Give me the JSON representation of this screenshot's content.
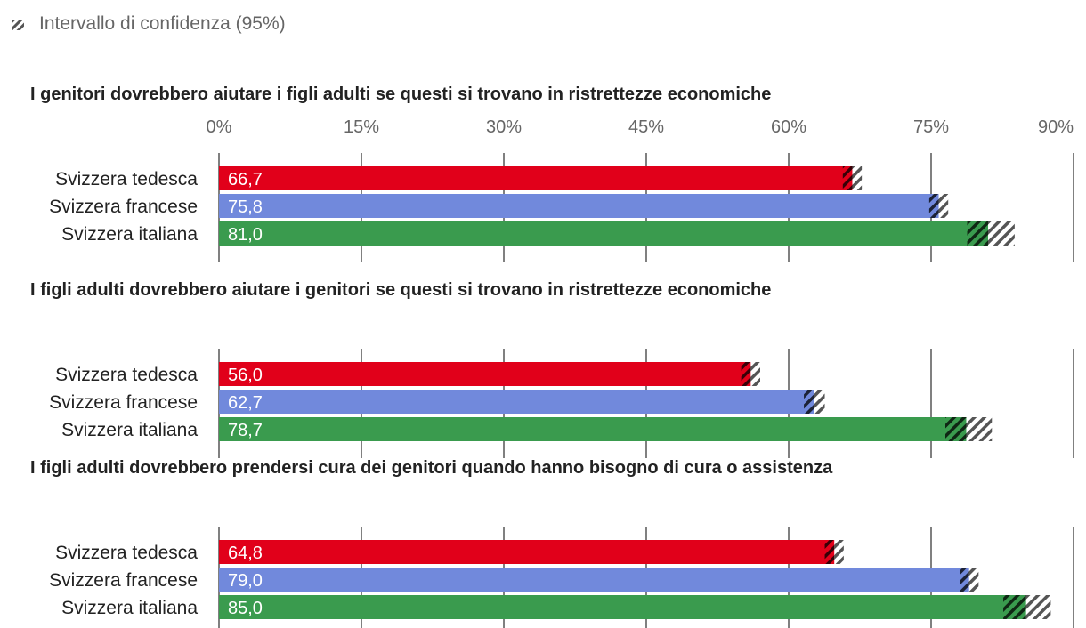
{
  "legend": {
    "ci_label": "Intervallo di confidenza (95%)",
    "icon": "hatch-icon"
  },
  "chart_data": {
    "type": "bar",
    "orientation": "horizontal",
    "x_ticks": [
      "0%",
      "15%",
      "30%",
      "45%",
      "60%",
      "75%",
      "90%"
    ],
    "xlim": [
      0,
      90
    ],
    "grid": true,
    "colors": {
      "Svizzera tedesca": "#e1001a",
      "Svizzera francese": "#7189dc",
      "Svizzera italiana": "#3a9b4e"
    },
    "panels": [
      {
        "title": "I genitori dovrebbero aiutare i figli adulti se questi si trovano in ristrettezze economiche",
        "categories": [
          "Svizzera tedesca",
          "Svizzera francese",
          "Svizzera italiana"
        ],
        "values": [
          66.7,
          75.8,
          81.0
        ],
        "value_labels": [
          "66,7",
          "75,8",
          "81,0"
        ],
        "ci_low": [
          65.7,
          74.8,
          78.8
        ],
        "ci_high": [
          67.7,
          76.8,
          83.8
        ]
      },
      {
        "title": "I figli adulti dovrebbero aiutare i genitori se questi si trovano in ristrettezze economiche",
        "categories": [
          "Svizzera tedesca",
          "Svizzera francese",
          "Svizzera italiana"
        ],
        "values": [
          56.0,
          62.7,
          78.7
        ],
        "value_labels": [
          "56,0",
          "62,7",
          "78,7"
        ],
        "ci_low": [
          55.0,
          61.6,
          76.5
        ],
        "ci_high": [
          57.0,
          63.8,
          81.4
        ]
      },
      {
        "title": "I figli adulti dovrebbero prendersi cura dei genitori quando hanno bisogno di cura o assistenza",
        "categories": [
          "Svizzera tedesca",
          "Svizzera francese",
          "Svizzera italiana"
        ],
        "values": [
          64.8,
          79.0,
          85.0
        ],
        "value_labels": [
          "64,8",
          "79,0",
          "85,0"
        ],
        "ci_low": [
          63.8,
          78.0,
          82.6
        ],
        "ci_high": [
          65.8,
          80.0,
          87.6
        ]
      }
    ]
  }
}
